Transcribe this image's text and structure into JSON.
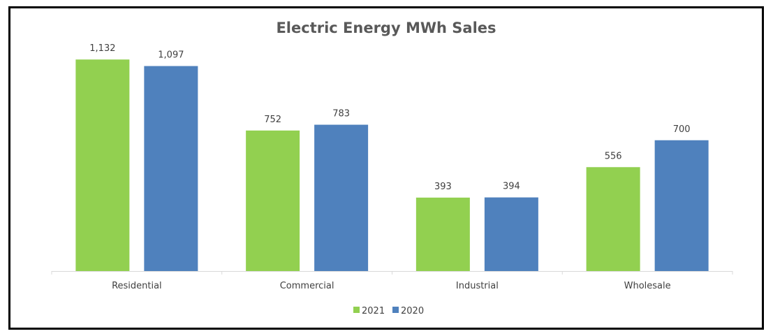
{
  "chart_data": {
    "type": "bar",
    "title": "Electric Energy MWh Sales",
    "categories": [
      "Residential",
      "Commercial",
      "Industrial",
      "Wholesale"
    ],
    "series": [
      {
        "name": "2021",
        "color": "#92d050",
        "values": [
          1132,
          752,
          393,
          556
        ],
        "labels": [
          "1,132",
          "752",
          "393",
          "556"
        ]
      },
      {
        "name": "2020",
        "color": "#4f81bd",
        "values": [
          1097,
          783,
          394,
          700
        ],
        "labels": [
          "1,097",
          "783",
          "394",
          "700"
        ]
      }
    ],
    "xlabel": "",
    "ylabel": "",
    "ylim": [
      0,
      1200
    ],
    "grid": false,
    "legend": "bottom"
  }
}
